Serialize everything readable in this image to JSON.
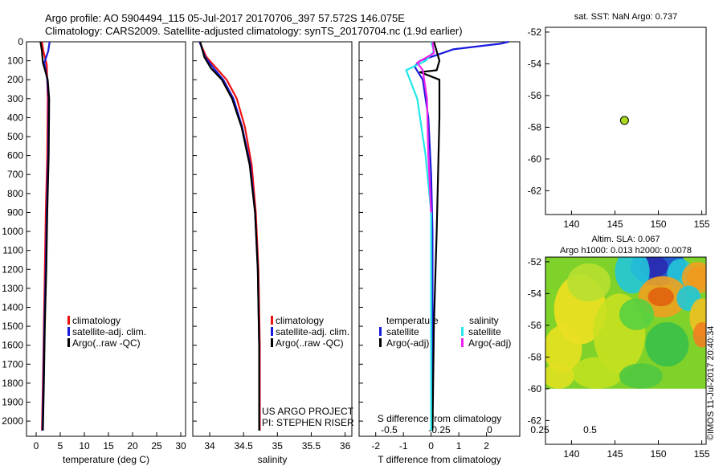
{
  "header": {
    "line1": "Argo profile: AO 5904494_115 05-Jul-2017 20170706_397 57.572S 146.075E",
    "line2": "Climatology: CARS2009. Satellite-adjusted climatology: synTS_20170704.nc (1.9d earlier)"
  },
  "colors": {
    "climatology": "#ee1111",
    "satellite": "#1a1adc",
    "argo": "#000000",
    "sal_satellite": "#22e8e8",
    "sal_argo": "#ee22ee"
  },
  "chart_data": [
    {
      "type": "line",
      "title": "",
      "xlabel": "temperature (deg C)",
      "ylabel": "",
      "xlim": [
        -2,
        31
      ],
      "ylim": [
        2080,
        0
      ],
      "xticks": [
        "0",
        "5",
        "10",
        "15",
        "20",
        "25",
        "30"
      ],
      "yticks": [
        "0",
        "100",
        "200",
        "300",
        "400",
        "500",
        "600",
        "700",
        "800",
        "900",
        "1000",
        "1100",
        "1200",
        "1300",
        "1400",
        "1500",
        "1600",
        "1700",
        "1800",
        "1900",
        "2000"
      ],
      "legend": [
        "climatology",
        "satellite-adj. clim.",
        "Argo(..raw -QC)"
      ],
      "legend_position": "lower-center",
      "series": [
        {
          "name": "climatology",
          "x": [
            1.2,
            1.5,
            2.2,
            2.3,
            2.4,
            2.3,
            2.0,
            1.8,
            1.6,
            1.4,
            1.2
          ],
          "y": [
            0,
            50,
            120,
            200,
            300,
            600,
            900,
            1200,
            1500,
            1800,
            2050
          ]
        },
        {
          "name": "satellite-adj. clim.",
          "x": [
            2.8,
            2.5,
            1.7,
            2.3,
            2.6,
            2.5,
            2.2,
            2.0,
            1.7,
            1.5,
            1.3
          ],
          "y": [
            0,
            50,
            110,
            200,
            300,
            600,
            900,
            1200,
            1500,
            1800,
            2050
          ]
        },
        {
          "name": "Argo(..raw -QC)",
          "x": [
            0.9,
            1.2,
            1.4,
            2.4,
            2.7,
            2.6,
            2.3,
            2.1,
            1.8,
            1.6,
            1.4
          ],
          "y": [
            0,
            50,
            110,
            200,
            300,
            600,
            900,
            1200,
            1500,
            1800,
            2050
          ]
        }
      ]
    },
    {
      "type": "line",
      "title": "",
      "xlabel": "salinity",
      "ylabel": "",
      "xlim": [
        33.75,
        36.1
      ],
      "ylim": [
        2080,
        0
      ],
      "xticks": [
        "34",
        "34.5",
        "35",
        "35.5",
        "36"
      ],
      "legend": [
        "climatology",
        "satellite-adj. clim.",
        "Argo(..raw -QC)"
      ],
      "legend_position": "lower-right",
      "annotations": [
        "US ARGO PROJECT",
        "PI: STEPHEN RISER"
      ],
      "series": [
        {
          "name": "climatology",
          "x": [
            33.85,
            33.95,
            34.1,
            34.25,
            34.4,
            34.52,
            34.62,
            34.68,
            34.72,
            34.74,
            34.74
          ],
          "y": [
            0,
            80,
            140,
            200,
            300,
            450,
            650,
            900,
            1200,
            1600,
            2050
          ]
        },
        {
          "name": "satellite-adj. clim.",
          "x": [
            33.85,
            33.93,
            34.06,
            34.2,
            34.35,
            34.48,
            34.6,
            34.67,
            34.71,
            34.73,
            34.73
          ],
          "y": [
            0,
            80,
            140,
            200,
            300,
            450,
            650,
            900,
            1200,
            1600,
            2050
          ]
        },
        {
          "name": "Argo(..raw -QC)",
          "x": [
            33.86,
            33.92,
            34.02,
            34.18,
            34.33,
            34.47,
            34.59,
            34.67,
            34.71,
            34.73,
            34.73
          ],
          "y": [
            0,
            80,
            140,
            200,
            300,
            450,
            650,
            900,
            1200,
            1600,
            2050
          ]
        }
      ]
    },
    {
      "type": "line",
      "title": "",
      "xlabel": "T difference from climatology",
      "top_xlabel": "S difference from climatology",
      "xlim": [
        -2.6,
        3.2
      ],
      "ylim": [
        2080,
        0
      ],
      "xticks": [
        "-2",
        "-1",
        "0",
        "1",
        "2"
      ],
      "top_xticks": [
        "-0.5",
        "-0.25",
        "0",
        "0.25",
        "0.5"
      ],
      "legend": [
        "satellite",
        "Argo(-adj)",
        "satellite",
        "Argo(-adj)"
      ],
      "legend_titles": [
        "temperature",
        "salinity"
      ],
      "legend_position": "lower-center",
      "series": [
        {
          "name": "satellite",
          "group": "temperature",
          "x": [
            2.8,
            2.5,
            0.8,
            -0.4,
            -0.6,
            -0.3,
            -0.1,
            0.0,
            0.05,
            0.05,
            0.05
          ],
          "y": [
            0,
            10,
            40,
            100,
            130,
            200,
            400,
            700,
            1000,
            1500,
            2050
          ]
        },
        {
          "name": "Argo(-adj)",
          "group": "temperature",
          "x": [
            0.1,
            0.2,
            0.3,
            0.2,
            -0.4,
            0.3,
            0.3,
            0.25,
            0.2,
            0.1,
            0.05
          ],
          "y": [
            0,
            50,
            100,
            150,
            160,
            200,
            400,
            700,
            1000,
            1500,
            2050
          ]
        },
        {
          "name": "satellite",
          "group": "salinity",
          "x": [
            0.0,
            0.1,
            -0.2,
            -0.9,
            -0.5,
            -0.2,
            0.0,
            0.0,
            0.0,
            0.0
          ],
          "y": [
            0,
            50,
            100,
            150,
            300,
            600,
            900,
            1200,
            1600,
            2050
          ]
        },
        {
          "name": "Argo(-adj)",
          "group": "salinity",
          "x": [
            0.05,
            0.1,
            -0.5,
            -0.3,
            -0.15,
            -0.1,
            0.0
          ],
          "y": [
            0,
            60,
            110,
            150,
            300,
            600,
            900
          ]
        }
      ]
    },
    {
      "type": "scatter",
      "title": "sat. SST: NaN Argo: 0.737",
      "xlim": [
        137,
        155.5
      ],
      "ylim": [
        -63.5,
        -51.7
      ],
      "xticks": [
        "140",
        "145",
        "150",
        "155"
      ],
      "yticks": [
        "-52",
        "-54",
        "-56",
        "-58",
        "-60",
        "-62"
      ],
      "points": [
        {
          "x": 146.1,
          "y": -57.57
        }
      ],
      "marker_color": "#a8d820"
    },
    {
      "type": "heatmap",
      "title": "Altim. SLA: 0.067",
      "subtitle": "Argo h1000: 0.013 h2000: 0.0078",
      "xlim": [
        137,
        155.5
      ],
      "ylim": [
        -63.5,
        -51.7
      ],
      "xticks": [
        "140",
        "145",
        "150",
        "155"
      ],
      "yticks": [
        "-52",
        "-54",
        "-56",
        "-58",
        "-60",
        "-62"
      ],
      "data_extent_lat": [
        -60,
        -51.7
      ]
    }
  ],
  "footer": {
    "side_text": "©IMOS 11-Jul-2017 20:40:34"
  }
}
